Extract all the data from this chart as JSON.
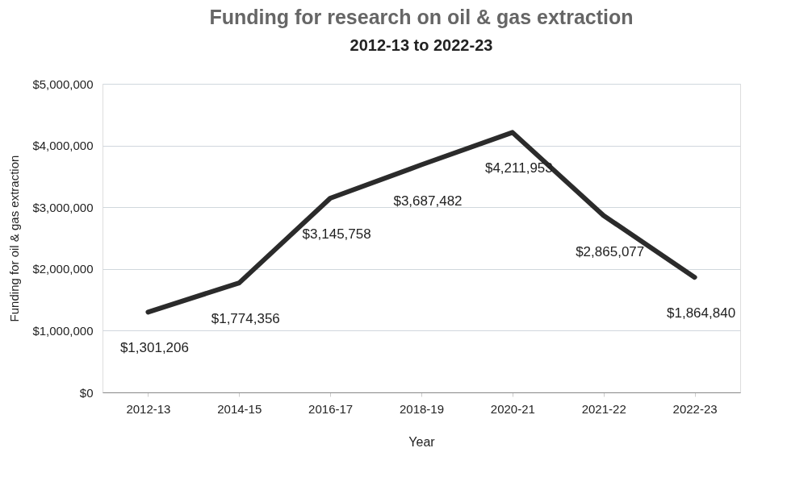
{
  "chart_data": {
    "type": "line",
    "title": "Funding for research on oil & gas extraction",
    "subtitle": "2012-13 to 2022-23",
    "xlabel": "Year",
    "ylabel": "Funding for oil & gas extraction",
    "categories": [
      "2012-13",
      "2014-15",
      "2016-17",
      "2018-19",
      "2020-21",
      "2021-22",
      "2022-23"
    ],
    "series": [
      {
        "color": "#2b2b2b",
        "values": [
          1301206,
          1774356,
          3145758,
          3687482,
          4211953,
          2865077,
          1864840
        ],
        "value_labels": [
          "$1,301,206",
          "$1,774,356",
          "$3,145,758",
          "$3,687,482",
          "$4,211,953",
          "$2,865,077",
          "$1,864,840"
        ]
      }
    ],
    "ylim": [
      0,
      5000000
    ],
    "yticks": [
      {
        "value": 0,
        "label": "$0"
      },
      {
        "value": 1000000,
        "label": "$1,000,000"
      },
      {
        "value": 2000000,
        "label": "$2,000,000"
      },
      {
        "value": 3000000,
        "label": "$3,000,000"
      },
      {
        "value": 4000000,
        "label": "$4,000,000"
      },
      {
        "value": 5000000,
        "label": "$5,000,000"
      }
    ],
    "grid": "y",
    "marker": "none",
    "line_style": "solid"
  }
}
